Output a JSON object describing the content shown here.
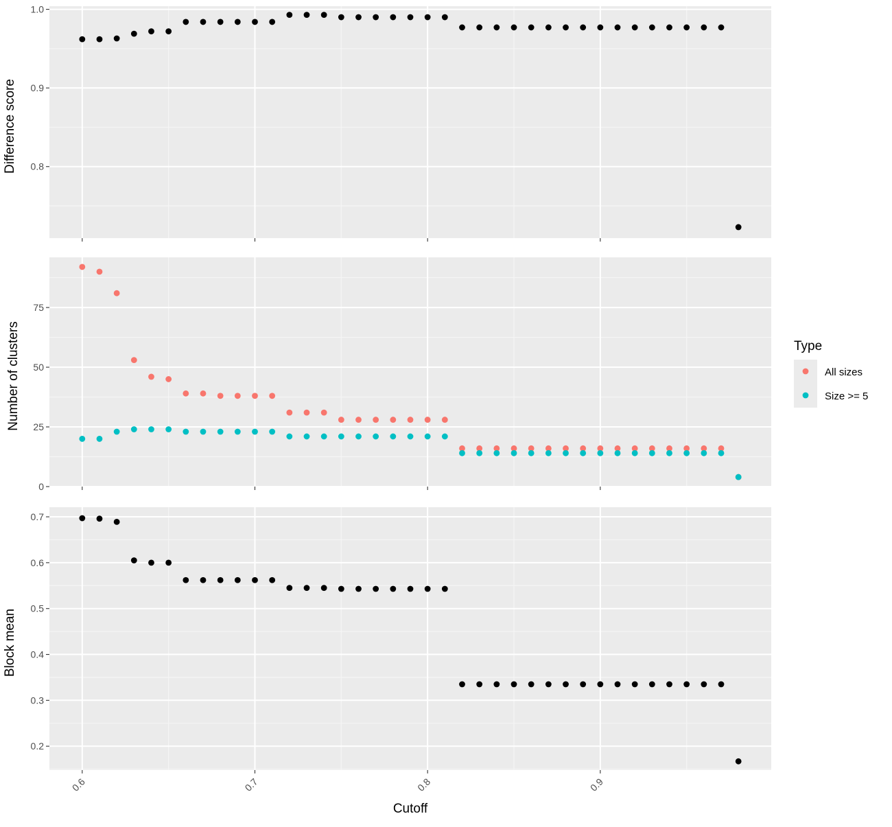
{
  "chart_data": [
    {
      "type": "scatter",
      "ylabel": "Difference score",
      "xlabel": "",
      "xlim": [
        0.581,
        0.999
      ],
      "ylim": [
        0.709,
        1.004
      ],
      "xticks": [
        0.6,
        0.7,
        0.8,
        0.9
      ],
      "yticks": [
        0.8,
        0.9,
        1.0
      ],
      "ytick_labels": [
        "0.8",
        "0.9",
        "1.0"
      ],
      "grid": true,
      "series": [
        {
          "color": "#000000",
          "x": [
            0.6,
            0.61,
            0.62,
            0.63,
            0.64,
            0.65,
            0.66,
            0.67,
            0.68,
            0.69,
            0.7,
            0.71,
            0.72,
            0.73,
            0.74,
            0.75,
            0.76,
            0.77,
            0.78,
            0.79,
            0.8,
            0.81,
            0.82,
            0.83,
            0.84,
            0.85,
            0.86,
            0.87,
            0.88,
            0.89,
            0.9,
            0.91,
            0.92,
            0.93,
            0.94,
            0.95,
            0.96,
            0.97,
            0.98
          ],
          "y": [
            0.962,
            0.962,
            0.963,
            0.969,
            0.972,
            0.972,
            0.984,
            0.984,
            0.984,
            0.984,
            0.984,
            0.984,
            0.993,
            0.993,
            0.993,
            0.99,
            0.99,
            0.99,
            0.99,
            0.99,
            0.99,
            0.99,
            0.977,
            0.977,
            0.977,
            0.977,
            0.977,
            0.977,
            0.977,
            0.977,
            0.977,
            0.977,
            0.977,
            0.977,
            0.977,
            0.977,
            0.977,
            0.977,
            0.723
          ]
        }
      ]
    },
    {
      "type": "scatter",
      "ylabel": "Number of clusters",
      "xlabel": "",
      "xlim": [
        0.581,
        0.999
      ],
      "ylim": [
        0,
        96
      ],
      "xticks": [
        0.6,
        0.7,
        0.8,
        0.9
      ],
      "yticks": [
        0,
        25,
        50,
        75
      ],
      "ytick_labels": [
        "0",
        "25",
        "50",
        "75"
      ],
      "grid": true,
      "legend": {
        "title": "Type",
        "position": "right"
      },
      "series": [
        {
          "name": "All sizes",
          "color": "#F8766D",
          "x": [
            0.6,
            0.61,
            0.62,
            0.63,
            0.64,
            0.65,
            0.66,
            0.67,
            0.68,
            0.69,
            0.7,
            0.71,
            0.72,
            0.73,
            0.74,
            0.75,
            0.76,
            0.77,
            0.78,
            0.79,
            0.8,
            0.81,
            0.82,
            0.83,
            0.84,
            0.85,
            0.86,
            0.87,
            0.88,
            0.89,
            0.9,
            0.91,
            0.92,
            0.93,
            0.94,
            0.95,
            0.96,
            0.97,
            0.98
          ],
          "y": [
            92,
            90,
            81,
            53,
            46,
            45,
            39,
            39,
            38,
            38,
            38,
            38,
            31,
            31,
            31,
            28,
            28,
            28,
            28,
            28,
            28,
            28,
            16,
            16,
            16,
            16,
            16,
            16,
            16,
            16,
            16,
            16,
            16,
            16,
            16,
            16,
            16,
            16,
            4
          ]
        },
        {
          "name": "Size >= 5",
          "color": "#00BFC4",
          "x": [
            0.6,
            0.61,
            0.62,
            0.63,
            0.64,
            0.65,
            0.66,
            0.67,
            0.68,
            0.69,
            0.7,
            0.71,
            0.72,
            0.73,
            0.74,
            0.75,
            0.76,
            0.77,
            0.78,
            0.79,
            0.8,
            0.81,
            0.82,
            0.83,
            0.84,
            0.85,
            0.86,
            0.87,
            0.88,
            0.89,
            0.9,
            0.91,
            0.92,
            0.93,
            0.94,
            0.95,
            0.96,
            0.97,
            0.98
          ],
          "y": [
            20,
            20,
            23,
            24,
            24,
            24,
            23,
            23,
            23,
            23,
            23,
            23,
            21,
            21,
            21,
            21,
            21,
            21,
            21,
            21,
            21,
            21,
            14,
            14,
            14,
            14,
            14,
            14,
            14,
            14,
            14,
            14,
            14,
            14,
            14,
            14,
            14,
            14,
            4
          ]
        }
      ]
    },
    {
      "type": "scatter",
      "ylabel": "Block mean",
      "xlabel": "Cutoff",
      "xlim": [
        0.581,
        0.999
      ],
      "ylim": [
        0.148,
        0.721
      ],
      "xticks": [
        0.6,
        0.7,
        0.8,
        0.9
      ],
      "xtick_labels": [
        "0.6",
        "0.7",
        "0.8",
        "0.9"
      ],
      "yticks": [
        0.2,
        0.3,
        0.4,
        0.5,
        0.6,
        0.7
      ],
      "ytick_labels": [
        "0.2",
        "0.3",
        "0.4",
        "0.5",
        "0.6",
        "0.7"
      ],
      "grid": true,
      "series": [
        {
          "color": "#000000",
          "x": [
            0.6,
            0.61,
            0.62,
            0.63,
            0.64,
            0.65,
            0.66,
            0.67,
            0.68,
            0.69,
            0.7,
            0.71,
            0.72,
            0.73,
            0.74,
            0.75,
            0.76,
            0.77,
            0.78,
            0.79,
            0.8,
            0.81,
            0.82,
            0.83,
            0.84,
            0.85,
            0.86,
            0.87,
            0.88,
            0.89,
            0.9,
            0.91,
            0.92,
            0.93,
            0.94,
            0.95,
            0.96,
            0.97,
            0.98
          ],
          "y": [
            0.697,
            0.696,
            0.689,
            0.605,
            0.6,
            0.6,
            0.562,
            0.562,
            0.562,
            0.562,
            0.562,
            0.562,
            0.545,
            0.545,
            0.545,
            0.543,
            0.543,
            0.543,
            0.543,
            0.543,
            0.543,
            0.543,
            0.335,
            0.335,
            0.335,
            0.335,
            0.335,
            0.335,
            0.335,
            0.335,
            0.335,
            0.335,
            0.335,
            0.335,
            0.335,
            0.335,
            0.335,
            0.335,
            0.167
          ]
        }
      ]
    }
  ],
  "theme": {
    "panel_background": "#EBEBEB",
    "grid_major": "#FFFFFF",
    "grid_minor": "#F5F5F5",
    "tick_color": "#333333",
    "tick_label_color": "#4D4D4D"
  }
}
